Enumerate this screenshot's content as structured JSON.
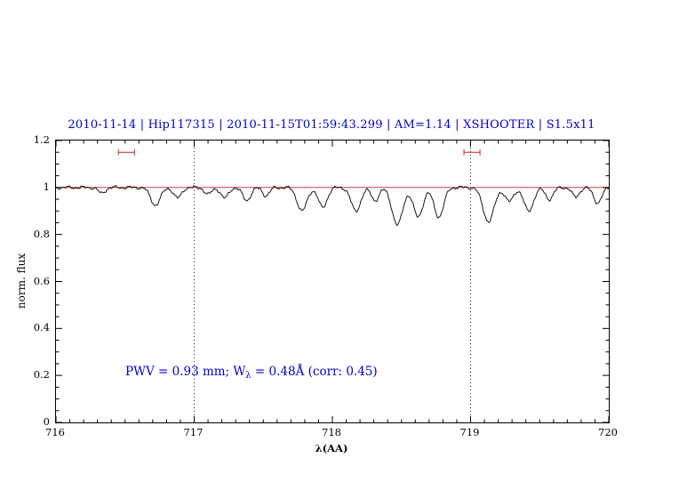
{
  "figure": {
    "title": "2010-11-14  |  Hip117315  |  2010-11-15T01:59:43.299  |  AM=1.14  |  XSHOOTER  |  S1.5x11",
    "title_color": "#0000cc",
    "annotation": {
      "prefix": "PWV  =  0.93 mm; W",
      "sub": "λ",
      "suffix": "  =  0.48Å (corr: 0.45)",
      "color": "#0000cc"
    }
  },
  "chart_data": {
    "type": "line",
    "title": "2010-11-14 | Hip117315 | 2010-11-15T01:59:43.299 | AM=1.14 | XSHOOTER | S1.5x11",
    "xlabel": "λ(AA)",
    "ylabel": "norm. flux",
    "xlim": [
      716,
      720
    ],
    "ylim": [
      0,
      1.2
    ],
    "xticks": [
      716,
      717,
      718,
      719,
      720
    ],
    "xtick_labels": [
      "716",
      "717",
      "718",
      "719",
      "720"
    ],
    "yticks": [
      0,
      0.2,
      0.4,
      0.6,
      0.8,
      1,
      1.2
    ],
    "ytick_labels": [
      "0",
      "0.2",
      "0.4",
      "0.6",
      "0.8",
      "1",
      "1.2"
    ],
    "x_minor_step": 0.1,
    "y_minor_step": 0.05,
    "grid": false,
    "legend": "none",
    "spectrum_color": "#000000",
    "continuum_color": "#cc2222",
    "continuum_level": 1.0,
    "dotted_vlines": [
      717,
      719
    ],
    "vline_color": "#222222",
    "bandpass_markers": [
      {
        "x_center": 716.51,
        "half_width": 0.058,
        "y": 1.15
      },
      {
        "x_center": 719.01,
        "half_width": 0.058,
        "y": 1.15
      }
    ],
    "marker_color": "#cc2222",
    "noise": {
      "a1": 0.004,
      "f1": 55,
      "a2": 0.003,
      "f2": 131,
      "a3": 0.002,
      "f3": 301
    },
    "sample_step": 0.004,
    "absorption_lines": [
      {
        "center": 716.33,
        "depth": 0.025,
        "sigma": 0.025
      },
      {
        "center": 716.72,
        "depth": 0.075,
        "sigma": 0.035
      },
      {
        "center": 716.88,
        "depth": 0.045,
        "sigma": 0.028
      },
      {
        "center": 717.1,
        "depth": 0.03,
        "sigma": 0.025
      },
      {
        "center": 717.22,
        "depth": 0.045,
        "sigma": 0.028
      },
      {
        "center": 717.38,
        "depth": 0.055,
        "sigma": 0.03
      },
      {
        "center": 717.52,
        "depth": 0.035,
        "sigma": 0.025
      },
      {
        "center": 717.78,
        "depth": 0.1,
        "sigma": 0.035
      },
      {
        "center": 717.93,
        "depth": 0.085,
        "sigma": 0.032
      },
      {
        "center": 718.17,
        "depth": 0.1,
        "sigma": 0.035
      },
      {
        "center": 718.31,
        "depth": 0.055,
        "sigma": 0.028
      },
      {
        "center": 718.47,
        "depth": 0.16,
        "sigma": 0.038
      },
      {
        "center": 718.62,
        "depth": 0.125,
        "sigma": 0.035
      },
      {
        "center": 718.77,
        "depth": 0.125,
        "sigma": 0.035
      },
      {
        "center": 719.13,
        "depth": 0.145,
        "sigma": 0.04
      },
      {
        "center": 719.28,
        "depth": 0.06,
        "sigma": 0.03
      },
      {
        "center": 719.42,
        "depth": 0.1,
        "sigma": 0.035
      },
      {
        "center": 719.57,
        "depth": 0.05,
        "sigma": 0.028
      },
      {
        "center": 719.76,
        "depth": 0.04,
        "sigma": 0.027
      },
      {
        "center": 719.92,
        "depth": 0.065,
        "sigma": 0.03
      }
    ]
  }
}
